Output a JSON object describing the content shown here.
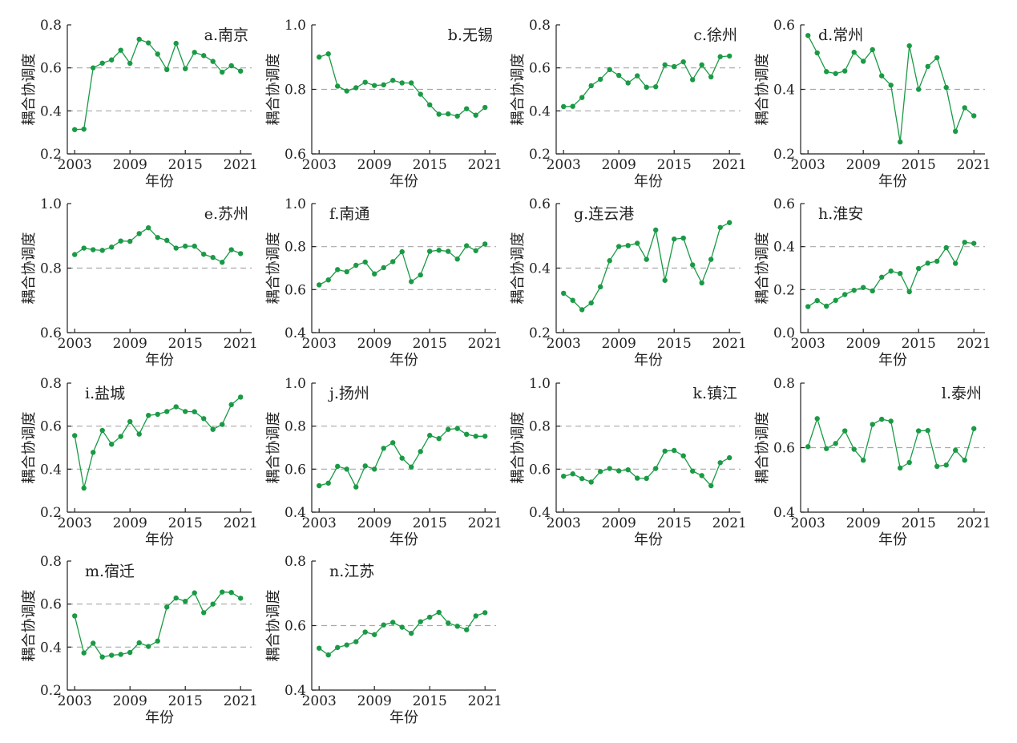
{
  "figure": {
    "line_color": "#1a9a45",
    "ref_line_color": "#a8a8a8",
    "axis_color": "#222222"
  },
  "chart_data": [
    {
      "type": "line",
      "title": "a.南京",
      "xlabel": "年份",
      "ylabel": "耦合协调度",
      "ylim": [
        0.2,
        0.8
      ],
      "yticks": [
        0.2,
        0.4,
        0.6,
        0.8
      ],
      "ytick_labels": [
        "0.2",
        "0.4",
        "0.6",
        "0.8"
      ],
      "ref_lines": [
        0.4,
        0.6
      ],
      "title_pos": "top-right",
      "x": [
        2003,
        2004,
        2005,
        2006,
        2007,
        2008,
        2009,
        2010,
        2011,
        2012,
        2013,
        2014,
        2015,
        2016,
        2017,
        2018,
        2019,
        2020,
        2021
      ],
      "values": [
        0.313,
        0.315,
        0.6,
        0.622,
        0.637,
        0.682,
        0.621,
        0.733,
        0.716,
        0.664,
        0.592,
        0.714,
        0.596,
        0.672,
        0.657,
        0.63,
        0.58,
        0.61,
        0.585
      ]
    },
    {
      "type": "line",
      "title": "b.无锡",
      "xlabel": "年份",
      "ylabel": "耦合协调度",
      "ylim": [
        0.6,
        1.0
      ],
      "yticks": [
        0.6,
        0.8,
        1.0
      ],
      "ytick_labels": [
        "0.6",
        "0.8",
        "1.0"
      ],
      "ref_lines": [
        0.8
      ],
      "title_pos": "top-right",
      "x": [
        2003,
        2004,
        2005,
        2006,
        2007,
        2008,
        2009,
        2010,
        2011,
        2012,
        2013,
        2014,
        2015,
        2016,
        2017,
        2018,
        2019,
        2020,
        2021
      ],
      "values": [
        0.9,
        0.91,
        0.81,
        0.795,
        0.805,
        0.822,
        0.812,
        0.814,
        0.828,
        0.82,
        0.82,
        0.785,
        0.752,
        0.723,
        0.724,
        0.717,
        0.74,
        0.72,
        0.744
      ]
    },
    {
      "type": "line",
      "title": "c.徐州",
      "xlabel": "年份",
      "ylabel": "耦合协调度",
      "ylim": [
        0.2,
        0.8
      ],
      "yticks": [
        0.2,
        0.4,
        0.6,
        0.8
      ],
      "ytick_labels": [
        "0.2",
        "0.4",
        "0.6",
        "0.8"
      ],
      "ref_lines": [
        0.4,
        0.6
      ],
      "title_pos": "top-right",
      "x": [
        2003,
        2004,
        2005,
        2006,
        2007,
        2008,
        2009,
        2010,
        2011,
        2012,
        2013,
        2014,
        2015,
        2016,
        2017,
        2018,
        2019,
        2020,
        2021
      ],
      "values": [
        0.42,
        0.421,
        0.462,
        0.517,
        0.547,
        0.592,
        0.565,
        0.53,
        0.563,
        0.51,
        0.512,
        0.614,
        0.606,
        0.628,
        0.545,
        0.614,
        0.558,
        0.652,
        0.655
      ]
    },
    {
      "type": "line",
      "title": "d.常州",
      "xlabel": "年份",
      "ylabel": "耦合协调度",
      "ylim": [
        0.2,
        0.6
      ],
      "yticks": [
        0.2,
        0.4,
        0.6
      ],
      "ytick_labels": [
        "0.2",
        "0.4",
        "0.6"
      ],
      "ref_lines": [
        0.4
      ],
      "title_pos": "top-left",
      "x": [
        2003,
        2004,
        2005,
        2006,
        2007,
        2008,
        2009,
        2010,
        2011,
        2012,
        2013,
        2014,
        2015,
        2016,
        2017,
        2018,
        2019,
        2020,
        2021
      ],
      "values": [
        0.567,
        0.513,
        0.455,
        0.449,
        0.457,
        0.515,
        0.487,
        0.523,
        0.442,
        0.413,
        0.237,
        0.535,
        0.4,
        0.471,
        0.498,
        0.406,
        0.27,
        0.343,
        0.318
      ]
    },
    {
      "type": "line",
      "title": "e.苏州",
      "xlabel": "年份",
      "ylabel": "耦合协调度",
      "ylim": [
        0.6,
        1.0
      ],
      "yticks": [
        0.6,
        0.8,
        1.0
      ],
      "ytick_labels": [
        "0.6",
        "0.8",
        "1.0"
      ],
      "ref_lines": [
        0.8
      ],
      "title_pos": "top-right",
      "x": [
        2003,
        2004,
        2005,
        2006,
        2007,
        2008,
        2009,
        2010,
        2011,
        2012,
        2013,
        2014,
        2015,
        2016,
        2017,
        2018,
        2019,
        2020,
        2021
      ],
      "values": [
        0.842,
        0.862,
        0.857,
        0.855,
        0.865,
        0.884,
        0.883,
        0.907,
        0.925,
        0.895,
        0.886,
        0.862,
        0.868,
        0.868,
        0.843,
        0.833,
        0.818,
        0.857,
        0.845
      ]
    },
    {
      "type": "line",
      "title": "f.南通",
      "xlabel": "年份",
      "ylabel": "耦合协调度",
      "ylim": [
        0.4,
        1.0
      ],
      "yticks": [
        0.4,
        0.6,
        0.8,
        1.0
      ],
      "ytick_labels": [
        "0.4",
        "0.6",
        "0.8",
        "1.0"
      ],
      "ref_lines": [
        0.6,
        0.8
      ],
      "title_pos": "top-left",
      "x": [
        2003,
        2004,
        2005,
        2006,
        2007,
        2008,
        2009,
        2010,
        2011,
        2012,
        2013,
        2014,
        2015,
        2016,
        2017,
        2018,
        2019,
        2020,
        2021
      ],
      "values": [
        0.622,
        0.645,
        0.693,
        0.683,
        0.713,
        0.728,
        0.673,
        0.702,
        0.73,
        0.776,
        0.637,
        0.668,
        0.778,
        0.783,
        0.778,
        0.742,
        0.804,
        0.781,
        0.812
      ]
    },
    {
      "type": "line",
      "title": "g.连云港",
      "xlabel": "年份",
      "ylabel": "耦合协调度",
      "ylim": [
        0.2,
        0.6
      ],
      "yticks": [
        0.2,
        0.4,
        0.6
      ],
      "ytick_labels": [
        "0.2",
        "0.4",
        "0.6"
      ],
      "ref_lines": [
        0.4
      ],
      "title_pos": "top-left",
      "x": [
        2003,
        2004,
        2005,
        2006,
        2007,
        2008,
        2009,
        2010,
        2011,
        2012,
        2013,
        2014,
        2015,
        2016,
        2017,
        2018,
        2019,
        2020,
        2021
      ],
      "values": [
        0.322,
        0.3,
        0.271,
        0.292,
        0.342,
        0.423,
        0.467,
        0.47,
        0.477,
        0.427,
        0.518,
        0.362,
        0.49,
        0.493,
        0.41,
        0.354,
        0.427,
        0.526,
        0.541
      ]
    },
    {
      "type": "line",
      "title": "h.淮安",
      "xlabel": "年份",
      "ylabel": "耦合协调度",
      "ylim": [
        0.0,
        0.6
      ],
      "yticks": [
        0.0,
        0.2,
        0.4,
        0.6
      ],
      "ytick_labels": [
        "0.0",
        "0.2",
        "0.4",
        "0.6"
      ],
      "ref_lines": [
        0.2,
        0.4
      ],
      "title_pos": "top-left",
      "x": [
        2003,
        2004,
        2005,
        2006,
        2007,
        2008,
        2009,
        2010,
        2011,
        2012,
        2013,
        2014,
        2015,
        2016,
        2017,
        2018,
        2019,
        2020,
        2021
      ],
      "values": [
        0.121,
        0.149,
        0.123,
        0.15,
        0.177,
        0.197,
        0.21,
        0.194,
        0.258,
        0.286,
        0.275,
        0.19,
        0.298,
        0.323,
        0.332,
        0.395,
        0.322,
        0.42,
        0.415
      ]
    },
    {
      "type": "line",
      "title": "i.盐城",
      "xlabel": "年份",
      "ylabel": "耦合协调度",
      "ylim": [
        0.2,
        0.8
      ],
      "yticks": [
        0.2,
        0.4,
        0.6,
        0.8
      ],
      "ytick_labels": [
        "0.2",
        "0.4",
        "0.6",
        "0.8"
      ],
      "ref_lines": [
        0.4,
        0.6
      ],
      "title_pos": "top-left",
      "x": [
        2003,
        2004,
        2005,
        2006,
        2007,
        2008,
        2009,
        2010,
        2011,
        2012,
        2013,
        2014,
        2015,
        2016,
        2017,
        2018,
        2019,
        2020,
        2021
      ],
      "values": [
        0.556,
        0.312,
        0.478,
        0.58,
        0.516,
        0.552,
        0.621,
        0.563,
        0.65,
        0.655,
        0.668,
        0.69,
        0.668,
        0.667,
        0.635,
        0.585,
        0.608,
        0.7,
        0.735
      ]
    },
    {
      "type": "line",
      "title": "j.扬州",
      "xlabel": "年份",
      "ylabel": "耦合协调度",
      "ylim": [
        0.4,
        1.0
      ],
      "yticks": [
        0.4,
        0.6,
        0.8,
        1.0
      ],
      "ytick_labels": [
        "0.4",
        "0.6",
        "0.8",
        "1.0"
      ],
      "ref_lines": [
        0.6,
        0.8
      ],
      "title_pos": "top-left",
      "x": [
        2003,
        2004,
        2005,
        2006,
        2007,
        2008,
        2009,
        2010,
        2011,
        2012,
        2013,
        2014,
        2015,
        2016,
        2017,
        2018,
        2019,
        2020,
        2021
      ],
      "values": [
        0.523,
        0.535,
        0.613,
        0.6,
        0.517,
        0.615,
        0.6,
        0.697,
        0.723,
        0.651,
        0.61,
        0.682,
        0.757,
        0.742,
        0.785,
        0.789,
        0.762,
        0.753,
        0.753
      ]
    },
    {
      "type": "line",
      "title": "k.镇江",
      "xlabel": "年份",
      "ylabel": "耦合协调度",
      "ylim": [
        0.4,
        1.0
      ],
      "yticks": [
        0.4,
        0.6,
        0.8,
        1.0
      ],
      "ytick_labels": [
        "0.4",
        "0.6",
        "0.8",
        "1.0"
      ],
      "ref_lines": [
        0.6,
        0.8
      ],
      "title_pos": "top-right",
      "x": [
        2003,
        2004,
        2005,
        2006,
        2007,
        2008,
        2009,
        2010,
        2011,
        2012,
        2013,
        2014,
        2015,
        2016,
        2017,
        2018,
        2019,
        2020,
        2021
      ],
      "values": [
        0.567,
        0.578,
        0.556,
        0.54,
        0.589,
        0.603,
        0.592,
        0.597,
        0.558,
        0.557,
        0.603,
        0.684,
        0.687,
        0.662,
        0.591,
        0.57,
        0.523,
        0.63,
        0.653
      ]
    },
    {
      "type": "line",
      "title": "l.泰州",
      "xlabel": "年份",
      "ylabel": "耦合协调度",
      "ylim": [
        0.4,
        0.8
      ],
      "yticks": [
        0.4,
        0.6,
        0.8
      ],
      "ytick_labels": [
        "0.4",
        "0.6",
        "0.8"
      ],
      "ref_lines": [
        0.6
      ],
      "title_pos": "top-right",
      "x": [
        2003,
        2004,
        2005,
        2006,
        2007,
        2008,
        2009,
        2010,
        2011,
        2012,
        2013,
        2014,
        2015,
        2016,
        2017,
        2018,
        2019,
        2020,
        2021
      ],
      "values": [
        0.603,
        0.69,
        0.597,
        0.613,
        0.652,
        0.595,
        0.561,
        0.672,
        0.688,
        0.682,
        0.537,
        0.554,
        0.652,
        0.653,
        0.542,
        0.546,
        0.592,
        0.561,
        0.659
      ]
    },
    {
      "type": "line",
      "title": "m.宿迁",
      "xlabel": "年份",
      "ylabel": "耦合协调度",
      "ylim": [
        0.2,
        0.8
      ],
      "yticks": [
        0.2,
        0.4,
        0.6,
        0.8
      ],
      "ytick_labels": [
        "0.2",
        "0.4",
        "0.6",
        "0.8"
      ],
      "ref_lines": [
        0.4,
        0.6
      ],
      "title_pos": "top-left",
      "x": [
        2003,
        2004,
        2005,
        2006,
        2007,
        2008,
        2009,
        2010,
        2011,
        2012,
        2013,
        2014,
        2015,
        2016,
        2017,
        2018,
        2019,
        2020,
        2021
      ],
      "values": [
        0.545,
        0.373,
        0.418,
        0.354,
        0.362,
        0.366,
        0.375,
        0.42,
        0.403,
        0.428,
        0.586,
        0.628,
        0.613,
        0.652,
        0.56,
        0.6,
        0.656,
        0.654,
        0.627
      ]
    },
    {
      "type": "line",
      "title": "n.江苏",
      "xlabel": "年份",
      "ylabel": "耦合协调度",
      "ylim": [
        0.4,
        0.8
      ],
      "yticks": [
        0.4,
        0.6,
        0.8
      ],
      "ytick_labels": [
        "0.4",
        "0.6",
        "0.8"
      ],
      "ref_lines": [
        0.6
      ],
      "title_pos": "top-left",
      "x": [
        2003,
        2004,
        2005,
        2006,
        2007,
        2008,
        2009,
        2010,
        2011,
        2012,
        2013,
        2014,
        2015,
        2016,
        2017,
        2018,
        2019,
        2020,
        2021
      ],
      "values": [
        0.53,
        0.509,
        0.532,
        0.54,
        0.55,
        0.58,
        0.572,
        0.602,
        0.61,
        0.595,
        0.576,
        0.612,
        0.626,
        0.641,
        0.608,
        0.598,
        0.587,
        0.63,
        0.64
      ]
    }
  ],
  "x_ticks": [
    2003,
    2009,
    2015,
    2021
  ],
  "x_tick_labels": [
    "2003",
    "2009",
    "2015",
    "2021"
  ]
}
